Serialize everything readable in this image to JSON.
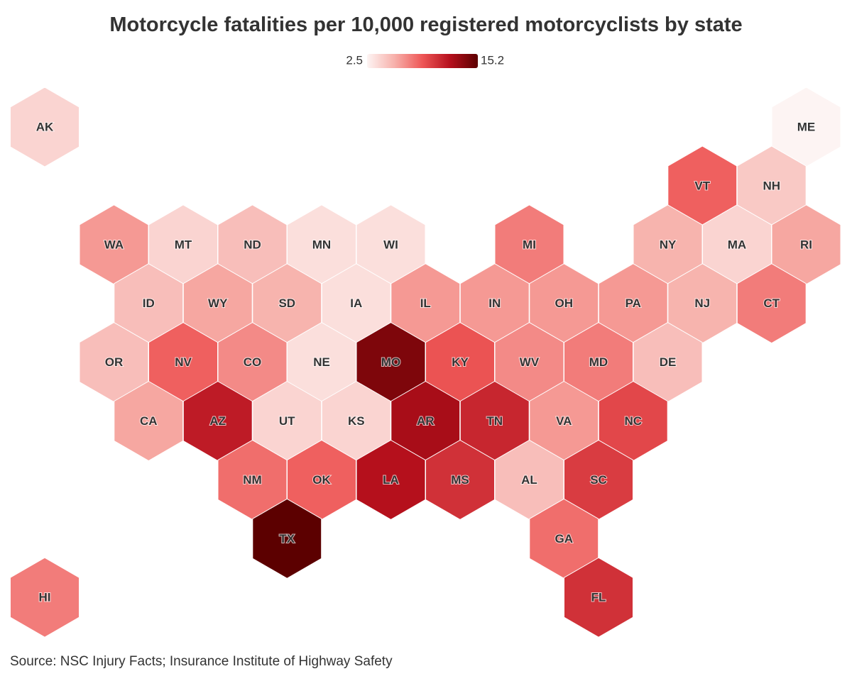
{
  "chart_data": {
    "type": "hexmap",
    "title": "Motorcycle fatalities per 10,000 registered motorcyclists by state",
    "source": "Source: NSC Injury Facts; Insurance Institute of Highway Safety",
    "colorbar": {
      "min": 2.5,
      "max": 15.2,
      "colors": [
        "#fdf4f3",
        "#f7b0aa",
        "#ee5656",
        "#b50f1c",
        "#5c0000"
      ]
    },
    "states": [
      "AK",
      "ME",
      "VT",
      "NH",
      "WA",
      "MT",
      "ND",
      "MN",
      "WI",
      "MI",
      "NY",
      "MA",
      "RI",
      "ID",
      "WY",
      "SD",
      "IA",
      "IL",
      "IN",
      "OH",
      "PA",
      "NJ",
      "CT",
      "OR",
      "NV",
      "CO",
      "NE",
      "MO",
      "KY",
      "WV",
      "MD",
      "DE",
      "CA",
      "AZ",
      "UT",
      "KS",
      "AR",
      "TN",
      "VA",
      "NC",
      "NM",
      "OK",
      "LA",
      "MS",
      "AL",
      "SC",
      "TX",
      "GA",
      "HI",
      "FL"
    ],
    "values": [
      4,
      2.5,
      8.5,
      4.5,
      6.5,
      4,
      5,
      3.5,
      3.5,
      7.5,
      5.5,
      4,
      6,
      5,
      6,
      5.5,
      3.5,
      6.5,
      6.5,
      6.5,
      6.5,
      5.5,
      7.5,
      5,
      8.5,
      7,
      3.5,
      14,
      9,
      7,
      7.5,
      5,
      6,
      11.5,
      4,
      4,
      12.5,
      11,
      6.5,
      9.5,
      8,
      8.5,
      12,
      10.5,
      5,
      10,
      15.2,
      8,
      7.5,
      10.5
    ]
  }
}
